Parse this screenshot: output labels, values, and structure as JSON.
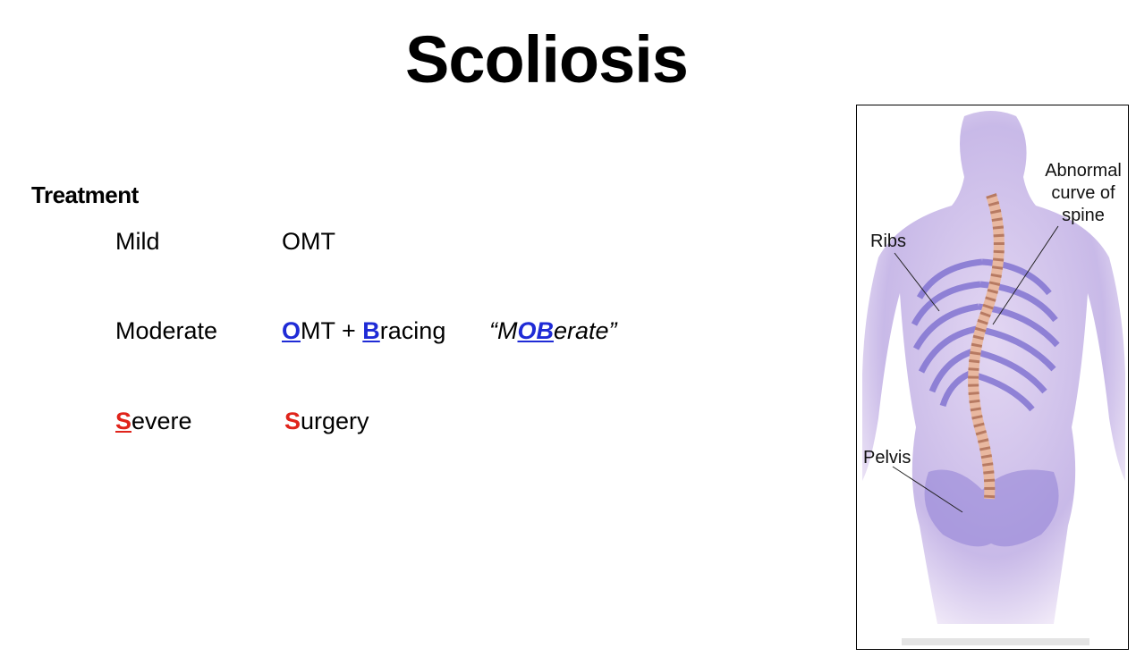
{
  "slide": {
    "title": "Scoliosis",
    "heading": "Treatment",
    "rows": {
      "mild": {
        "level": "Mild",
        "treatment": "OMT"
      },
      "moderate": {
        "level": "Moderate",
        "treatment_o": "O",
        "treatment_mid": "MT + ",
        "treatment_b": "B",
        "treatment_rest": "racing",
        "mnemonic_open": "“M",
        "mnemonic_ob": "OB",
        "mnemonic_close": "erate”"
      },
      "severe": {
        "level_s": "S",
        "level_rest": "evere",
        "treatment_s": "S",
        "treatment_rest": "urgery"
      }
    }
  },
  "figure": {
    "labels": {
      "curve_1": "Abnormal",
      "curve_2": "curve of",
      "curve_3": "spine",
      "ribs": "Ribs",
      "pelvis": "Pelvis"
    }
  },
  "colors": {
    "accent_blue": "#1f2bd6",
    "accent_red": "#e0241b"
  }
}
